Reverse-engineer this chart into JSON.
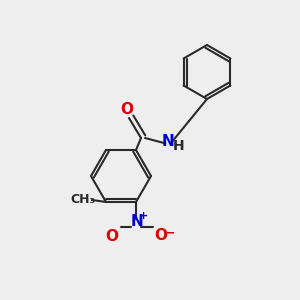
{
  "bg_color": "#eeeeee",
  "bond_color": "#2a2a2a",
  "bond_width": 1.5,
  "atom_colors": {
    "O": "#dd0000",
    "N": "#0000cc",
    "C": "#2a2a2a"
  },
  "font_size": 10
}
